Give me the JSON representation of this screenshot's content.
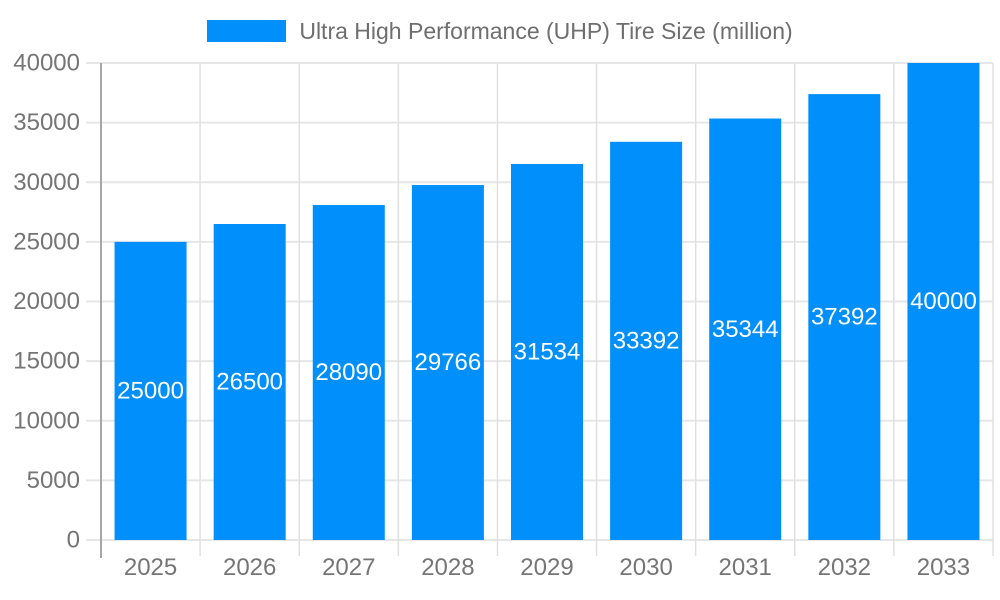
{
  "legend": {
    "position": "top",
    "label": "Ultra High Performance (UHP) Tire Size (million)"
  },
  "chart_data": {
    "type": "bar",
    "title": "Ultra High Performance (UHP) Tire Size (million)",
    "categories": [
      "2025",
      "2026",
      "2027",
      "2028",
      "2029",
      "2030",
      "2031",
      "2032",
      "2033"
    ],
    "series": [
      {
        "name": "Ultra High Performance (UHP) Tire Size (million)",
        "values": [
          25000,
          26500,
          28090,
          29766,
          31534,
          33392,
          35344,
          37392,
          40000
        ]
      }
    ],
    "data_labels": [
      "25000",
      "26500",
      "28090",
      "29766",
      "31534",
      "33392",
      "35344",
      "37392",
      "40000"
    ],
    "xlabel": "",
    "ylabel": "",
    "ylim": [
      0,
      40000
    ],
    "ytick_step": 5000,
    "yticks": [
      "0",
      "5000",
      "10000",
      "15000",
      "20000",
      "25000",
      "30000",
      "35000",
      "40000"
    ],
    "grid": true,
    "legend_position": "top",
    "colors": {
      "bar": "#008FFB",
      "grid": "#e6e6e6",
      "vertical_grid": "#e0e0e0",
      "y_axis_line": "#a6a6a6",
      "axis_label": "#757575",
      "legend_text": "#6e6e6e",
      "value_label": "#ffffff",
      "background": "#ffffff"
    }
  }
}
